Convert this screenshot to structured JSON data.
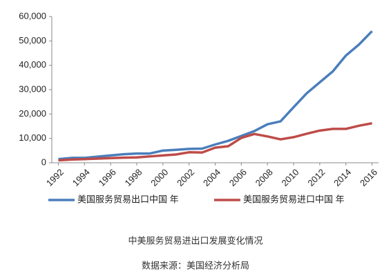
{
  "chart_data": {
    "type": "line",
    "x": [
      1992,
      1993,
      1994,
      1995,
      1996,
      1997,
      1998,
      1999,
      2000,
      2001,
      2002,
      2003,
      2004,
      2005,
      2006,
      2007,
      2008,
      2009,
      2010,
      2011,
      2012,
      2013,
      2014,
      2015,
      2016
    ],
    "series": [
      {
        "name": "美国服务贸易出口中国 年",
        "color": "#4a7ebb",
        "values": [
          1500,
          2000,
          2000,
          2500,
          3000,
          3500,
          3800,
          3800,
          5000,
          5300,
          5700,
          5800,
          7500,
          9000,
          11000,
          13000,
          15800,
          17000,
          22800,
          28500,
          33000,
          37500,
          44000,
          48500,
          54000
        ]
      },
      {
        "name": "美国服务贸易进口中国 年",
        "color": "#be4b48",
        "values": [
          1000,
          1300,
          1500,
          1700,
          1900,
          2100,
          2200,
          2600,
          3000,
          3400,
          4300,
          4200,
          6200,
          6800,
          10200,
          11800,
          10800,
          9600,
          10500,
          11900,
          13200,
          13900,
          13900,
          15200,
          16200
        ]
      }
    ],
    "xlim": [
      1991.5,
      2016.5
    ],
    "xticks": [
      1992,
      1994,
      1996,
      1998,
      2000,
      2002,
      2004,
      2006,
      2008,
      2010,
      2012,
      2014,
      2016
    ],
    "ylim": [
      0,
      60000
    ],
    "yticks": [
      0,
      {
        "value": 10000,
        "label": "10,000"
      },
      {
        "value": 20000,
        "label": "20,000"
      },
      {
        "value": 30000,
        "label": "30,000"
      },
      {
        "value": 40000,
        "label": "40,000"
      },
      {
        "value": 50000,
        "label": "50,000"
      },
      {
        "value": 60000,
        "label": "60,000"
      }
    ],
    "legend": "bottom",
    "caption": "中美服务贸易进出口发展变化情况",
    "source": "数据来源：美国经济分析局"
  }
}
